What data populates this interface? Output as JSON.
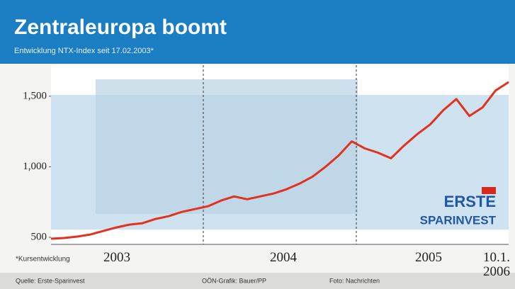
{
  "chart_data": {
    "type": "line",
    "title": "Zentraleuropa boomt",
    "subtitle": "Entwicklung NTX-Index seit 17.02.2003*",
    "footnote": "*Kursentwicklung",
    "sources": [
      "Quelle: Erste-Sparinvest",
      "OÖN-Grafik: Bauer/PP",
      "Foto: Nachrichten"
    ],
    "logo": [
      "ERSTE",
      "SPARINVEST"
    ],
    "x_labels": [
      "2003",
      "2004",
      "2005",
      "10.1. 2006"
    ],
    "series": [
      {
        "name": "NTX-Index",
        "color": "#e2321f",
        "values": [
          490,
          495,
          505,
          520,
          545,
          570,
          590,
          600,
          630,
          650,
          680,
          700,
          720,
          760,
          790,
          770,
          790,
          810,
          840,
          880,
          930,
          1000,
          1080,
          1180,
          1130,
          1100,
          1060,
          1150,
          1230,
          1300,
          1400,
          1480,
          1360,
          1420,
          1540,
          1600
        ]
      }
    ],
    "ylim": [
      450,
      1720
    ],
    "yticks": [
      {
        "value": 500,
        "label": "500"
      },
      {
        "value": 1000,
        "label": "1,000"
      },
      {
        "value": 1500,
        "label": "1,500"
      }
    ]
  }
}
